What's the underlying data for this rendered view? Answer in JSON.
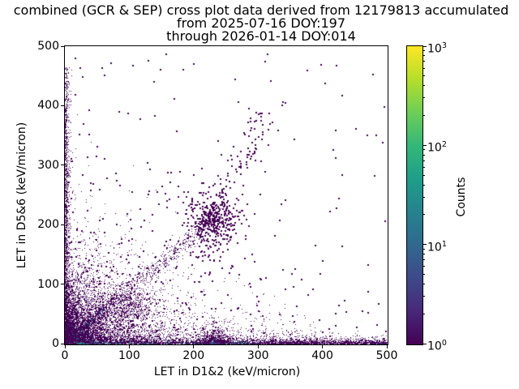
{
  "chart_data": {
    "type": "heatmap",
    "title_lines": [
      "combined (GCR & SEP) cross plot data derived from 12179813 accumulated",
      "from 2025-07-16 DOY:197",
      "through 2026-01-14 DOY:014"
    ],
    "xlabel": "LET in D1&2 (keV/micron)",
    "ylabel": "LET in D5&6 (keV/micron)",
    "xlim": [
      0,
      500
    ],
    "ylim": [
      0,
      500
    ],
    "xticks": [
      0,
      100,
      200,
      300,
      400,
      500
    ],
    "yticks": [
      0,
      100,
      200,
      300,
      400,
      500
    ],
    "grid": false,
    "colorbar": {
      "label": "Counts",
      "scale": "log10",
      "range": [
        1,
        1000
      ],
      "ticks": [
        {
          "mantissa": "10",
          "exp": "0"
        },
        {
          "mantissa": "10",
          "exp": "1"
        },
        {
          "mantissa": "10",
          "exp": "2"
        },
        {
          "mantissa": "10",
          "exp": "3"
        }
      ],
      "colormap": "viridis",
      "gradient": [
        "#440154",
        "#482878",
        "#3e4989",
        "#31688e",
        "#26828e",
        "#1f9e89",
        "#35b779",
        "#6ece58",
        "#b5de2b",
        "#fde725"
      ]
    },
    "seed": 42,
    "density_components": [
      {
        "name": "origin-core",
        "n": 5200,
        "x": {
          "dist": "exp",
          "scale": 8.5
        },
        "y": {
          "dist": "exp",
          "scale": 8.5
        },
        "size": 1,
        "color": {
          "mode": "radial",
          "stops": [
            [
              4.5,
              "#fde725"
            ],
            [
              8,
              "#addc30"
            ],
            [
              13,
              "#5ec962"
            ],
            [
              20,
              "#28ae80"
            ],
            [
              30,
              "#2c728e"
            ],
            [
              44,
              "#3b528b"
            ],
            [
              70,
              "#472d7b"
            ],
            [
              10000,
              "#440154"
            ]
          ]
        }
      },
      {
        "name": "diagonal-teal-streak",
        "n": 430,
        "line": {
          "from": [
            0,
            0
          ],
          "to": [
            78,
            78
          ],
          "spread": 2.2,
          "tpow": 1.7
        },
        "size": 1,
        "color": {
          "mode": "t",
          "stops": [
            [
              0.28,
              "#1fa187"
            ],
            [
              0.5,
              "#2c728e"
            ],
            [
              0.75,
              "#3b528b"
            ],
            [
              1.01,
              "#440154"
            ]
          ]
        }
      },
      {
        "name": "diagonal-band",
        "n": 950,
        "line": {
          "from": [
            0,
            0
          ],
          "to": [
            235,
            215
          ],
          "spread": 7.5,
          "tpow": 1.5
        },
        "size": 1,
        "color": {
          "mode": "mix",
          "colors": [
            "#440154",
            "#472d7b"
          ],
          "weights": [
            0.92,
            0.08
          ]
        }
      },
      {
        "name": "diagonal-blob",
        "n": 460,
        "x": {
          "dist": "gauss",
          "mean": 103,
          "sd": 20
        },
        "y": {
          "dist": "gauss",
          "mean": 63,
          "sd": 15
        },
        "size": 1,
        "color": {
          "mode": "fixed",
          "color": "#440154"
        }
      },
      {
        "name": "lower-left-cloud",
        "n": 5200,
        "x": {
          "dist": "exp",
          "scale": 52
        },
        "y": {
          "dist": "exp",
          "scale": 42
        },
        "size": 1,
        "color": {
          "mode": "mix",
          "colors": [
            "#440154",
            "#472d7b"
          ],
          "weights": [
            0.9,
            0.1
          ]
        }
      },
      {
        "name": "bottom-band",
        "n": 2900,
        "x": {
          "dist": "uniform",
          "min": 0,
          "max": 500,
          "pow": 0.72
        },
        "y": {
          "dist": "exp",
          "scale": 3.2
        },
        "size": 1,
        "color": {
          "mode": "mix",
          "colors": [
            "#440154",
            "#3b528b"
          ],
          "weights": [
            0.9,
            0.1
          ]
        }
      },
      {
        "name": "bottom-band-teal",
        "n": 300,
        "x": {
          "dist": "uniform",
          "min": 0,
          "max": 290,
          "pow": 1.5
        },
        "y": {
          "dist": "exp",
          "scale": 1.5
        },
        "size": 1,
        "color": {
          "mode": "mix",
          "colors": [
            "#21918c",
            "#27808e",
            "#35b779"
          ],
          "weights": [
            0.4,
            0.4,
            0.2
          ]
        }
      },
      {
        "name": "bottom-scatter",
        "n": 780,
        "x": {
          "dist": "uniform",
          "min": 0,
          "max": 390,
          "pow": 0.9
        },
        "y": {
          "dist": "exp",
          "scale": 13
        },
        "size": 1,
        "color": {
          "mode": "fixed",
          "color": "#440154"
        }
      },
      {
        "name": "bump-x230",
        "n": 620,
        "x": {
          "dist": "gauss",
          "mean": 231,
          "sd": 13
        },
        "y": {
          "dist": "exp",
          "scale": 9
        },
        "size": 1,
        "color": {
          "mode": "fixed",
          "color": "#440154"
        }
      },
      {
        "name": "bump-x230-core",
        "n": 70,
        "x": {
          "dist": "gauss",
          "mean": 231,
          "sd": 6
        },
        "y": {
          "dist": "exp",
          "scale": 2.5
        },
        "size": 1,
        "color": {
          "mode": "mix",
          "colors": [
            "#355f8d",
            "#440154"
          ],
          "weights": [
            0.5,
            0.5
          ]
        }
      },
      {
        "name": "left-band",
        "n": 1550,
        "x": {
          "dist": "exp",
          "scale": 2.4
        },
        "y": {
          "dist": "uniform",
          "min": 0,
          "max": 465,
          "pow": 1.5
        },
        "size": 1,
        "color": {
          "mode": "mix",
          "colors": [
            "#440154",
            "#472d7b"
          ],
          "weights": [
            0.9,
            0.1
          ]
        }
      },
      {
        "name": "mid-cluster-halo",
        "n": 330,
        "x": {
          "dist": "gauss",
          "mean": 228,
          "sd": 24
        },
        "y": {
          "dist": "gauss",
          "mean": 207,
          "sd": 30
        },
        "size": 2,
        "color": {
          "mode": "fixed",
          "color": "#440154"
        }
      },
      {
        "name": "mid-cluster-core",
        "n": 90,
        "x": {
          "dist": "gauss",
          "mean": 230,
          "sd": 9
        },
        "y": {
          "dist": "gauss",
          "mean": 210,
          "sd": 11
        },
        "size": 2,
        "color": {
          "mode": "fixed",
          "color": "#440154"
        }
      },
      {
        "name": "cluster-trail",
        "n": 85,
        "line": {
          "from": [
            240,
            235
          ],
          "to": [
            315,
            405
          ],
          "spread": 13,
          "tpow": 1
        },
        "size": 2,
        "color": {
          "mode": "fixed",
          "color": "#440154"
        }
      },
      {
        "name": "sparse-field",
        "n": 540,
        "x": {
          "dist": "exp",
          "scale": 170
        },
        "y": {
          "dist": "exp",
          "scale": 130
        },
        "size": 2,
        "color": {
          "mode": "fixed",
          "color": "#440154"
        }
      },
      {
        "name": "far-outliers",
        "n": 14,
        "x": {
          "dist": "uniform",
          "min": 240,
          "max": 495,
          "pow": 1
        },
        "y": {
          "dist": "uniform",
          "min": 240,
          "max": 490,
          "pow": 1
        },
        "size": 2,
        "color": {
          "mode": "fixed",
          "color": "#440154"
        }
      }
    ],
    "outlier_points": [
      [
        23,
        465
      ],
      [
        60,
        452
      ],
      [
        313,
        488
      ],
      [
        375,
        461
      ],
      [
        477,
        453
      ],
      [
        263,
        446
      ],
      [
        338,
        408
      ],
      [
        436,
        54
      ],
      [
        470,
        88
      ],
      [
        452,
        28
      ],
      [
        352,
        118
      ],
      [
        302,
        252
      ]
    ],
    "point_color_single_count": "#440154"
  }
}
